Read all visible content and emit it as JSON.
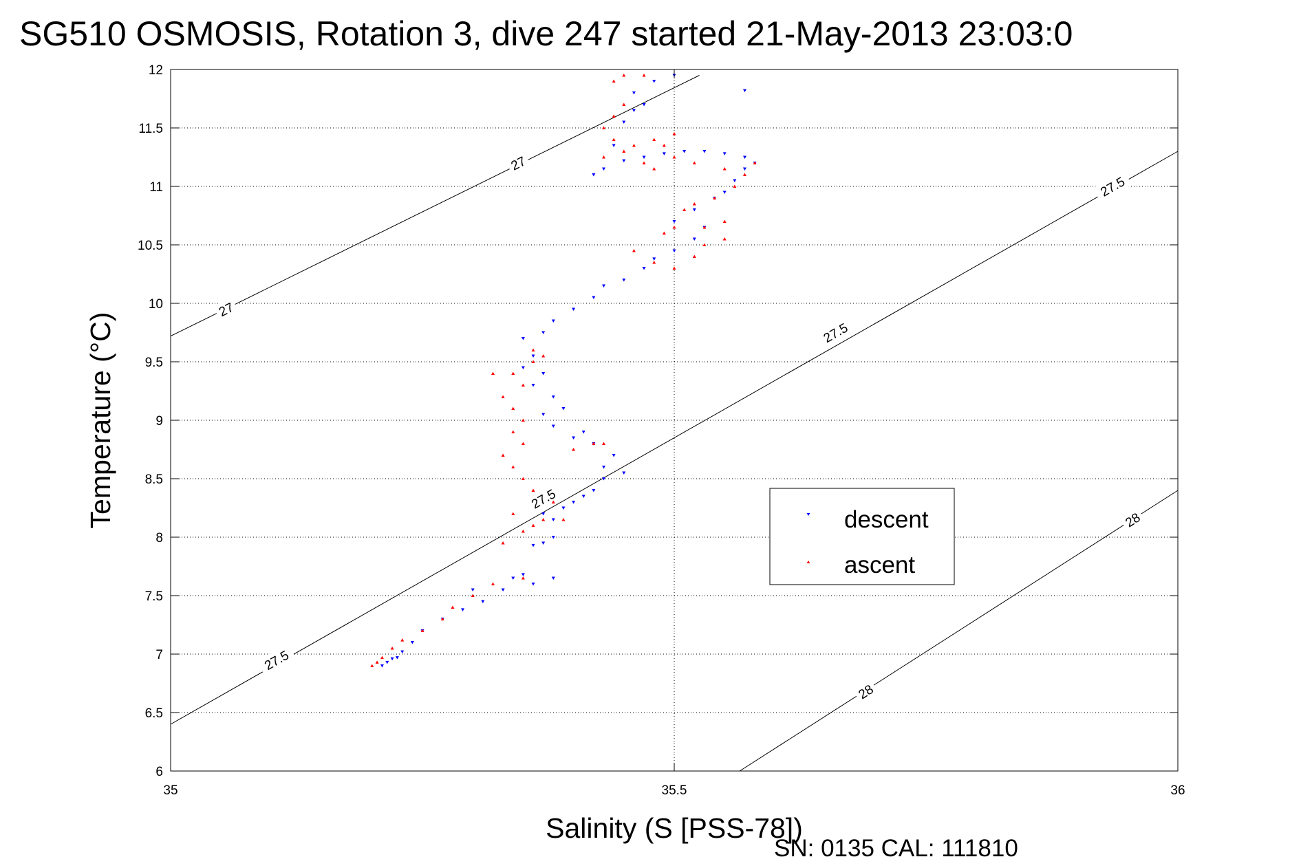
{
  "chart_data": {
    "type": "scatter",
    "title": "SG510 OSMOSIS, Rotation 3, dive 247 started 21-May-2013 23:03:0",
    "xlabel": "Salinity (S [PSS-78])",
    "ylabel": "Temperature (°C)",
    "footer": "SN: 0135  CAL: 111810",
    "xlim": [
      35,
      36
    ],
    "ylim": [
      6,
      12
    ],
    "xticks": [
      35,
      35.5,
      36
    ],
    "xtick_labels": [
      "35",
      "35.5",
      "36"
    ],
    "yticks": [
      6,
      6.5,
      7,
      7.5,
      8,
      8.5,
      9,
      9.5,
      10,
      10.5,
      11,
      11.5,
      12
    ],
    "ytick_labels": [
      "6",
      "6.5",
      "7",
      "7.5",
      "8",
      "8.5",
      "9",
      "9.5",
      "10",
      "10.5",
      "11",
      "11.5",
      "12"
    ],
    "grid": true,
    "legend": {
      "position": "right-middle",
      "entries": [
        "descent",
        "ascent"
      ]
    },
    "density_contours": [
      {
        "level": 27,
        "points": [
          [
            35,
            9.72
          ],
          [
            35.525,
            11.95
          ]
        ],
        "labels": [
          {
            "text": "27",
            "at": [
              35.055,
              9.95
            ]
          },
          {
            "text": "27",
            "at": [
              35.345,
              11.2
            ]
          }
        ]
      },
      {
        "level": 27.5,
        "points": [
          [
            35,
            6.4
          ],
          [
            36,
            11.3
          ]
        ],
        "labels": [
          {
            "text": "27.5",
            "at": [
              35.105,
              6.95
            ]
          },
          {
            "text": "27.5",
            "at": [
              35.37,
              8.33
            ]
          },
          {
            "text": "27.5",
            "at": [
              35.66,
              9.75
            ]
          },
          {
            "text": "27.5",
            "at": [
              35.935,
              11.0
            ]
          }
        ]
      },
      {
        "level": 28,
        "points": [
          [
            35.565,
            6
          ],
          [
            36,
            8.4
          ]
        ],
        "labels": [
          {
            "text": "28",
            "at": [
              35.69,
              6.68
            ]
          },
          {
            "text": "28",
            "at": [
              35.955,
              8.15
            ]
          }
        ]
      }
    ],
    "series": [
      {
        "name": "descent",
        "color": "#0000ff",
        "marker": "triangle-down",
        "points": [
          [
            35.21,
            6.9
          ],
          [
            35.215,
            6.93
          ],
          [
            35.22,
            6.96
          ],
          [
            35.225,
            6.97
          ],
          [
            35.23,
            7.02
          ],
          [
            35.24,
            7.1
          ],
          [
            35.25,
            7.2
          ],
          [
            35.27,
            7.3
          ],
          [
            35.29,
            7.38
          ],
          [
            35.31,
            7.45
          ],
          [
            35.3,
            7.55
          ],
          [
            35.33,
            7.55
          ],
          [
            35.36,
            7.6
          ],
          [
            35.38,
            7.65
          ],
          [
            35.34,
            7.65
          ],
          [
            35.35,
            7.68
          ],
          [
            35.36,
            7.93
          ],
          [
            35.37,
            7.95
          ],
          [
            35.38,
            8.0
          ],
          [
            35.38,
            8.15
          ],
          [
            35.37,
            8.2
          ],
          [
            35.39,
            8.25
          ],
          [
            35.4,
            8.3
          ],
          [
            35.41,
            8.35
          ],
          [
            35.42,
            8.4
          ],
          [
            35.43,
            8.5
          ],
          [
            35.45,
            8.55
          ],
          [
            35.43,
            8.6
          ],
          [
            35.44,
            8.7
          ],
          [
            35.42,
            8.8
          ],
          [
            35.4,
            8.85
          ],
          [
            35.41,
            8.9
          ],
          [
            35.38,
            8.95
          ],
          [
            35.37,
            9.05
          ],
          [
            35.39,
            9.1
          ],
          [
            35.38,
            9.2
          ],
          [
            35.36,
            9.3
          ],
          [
            35.37,
            9.4
          ],
          [
            35.35,
            9.45
          ],
          [
            35.36,
            9.55
          ],
          [
            35.35,
            9.7
          ],
          [
            35.37,
            9.75
          ],
          [
            35.38,
            9.85
          ],
          [
            35.4,
            9.95
          ],
          [
            35.42,
            10.05
          ],
          [
            35.43,
            10.15
          ],
          [
            35.45,
            10.2
          ],
          [
            35.47,
            10.3
          ],
          [
            35.48,
            10.38
          ],
          [
            35.5,
            10.45
          ],
          [
            35.52,
            10.55
          ],
          [
            35.53,
            10.65
          ],
          [
            35.5,
            10.7
          ],
          [
            35.52,
            10.8
          ],
          [
            35.54,
            10.9
          ],
          [
            35.55,
            10.95
          ],
          [
            35.56,
            11.05
          ],
          [
            35.57,
            11.15
          ],
          [
            35.58,
            11.2
          ],
          [
            35.57,
            11.25
          ],
          [
            35.55,
            11.28
          ],
          [
            35.53,
            11.3
          ],
          [
            35.51,
            11.3
          ],
          [
            35.49,
            11.28
          ],
          [
            35.47,
            11.25
          ],
          [
            35.45,
            11.22
          ],
          [
            35.43,
            11.15
          ],
          [
            35.42,
            11.1
          ],
          [
            35.44,
            11.35
          ],
          [
            35.45,
            11.55
          ],
          [
            35.46,
            11.65
          ],
          [
            35.47,
            11.7
          ],
          [
            35.46,
            11.8
          ],
          [
            35.48,
            11.9
          ],
          [
            35.5,
            11.95
          ],
          [
            35.57,
            11.82
          ]
        ]
      },
      {
        "name": "ascent",
        "color": "#ff0000",
        "marker": "triangle-up",
        "points": [
          [
            35.2,
            6.9
          ],
          [
            35.205,
            6.93
          ],
          [
            35.21,
            6.97
          ],
          [
            35.22,
            7.05
          ],
          [
            35.23,
            7.12
          ],
          [
            35.25,
            7.2
          ],
          [
            35.27,
            7.3
          ],
          [
            35.28,
            7.4
          ],
          [
            35.3,
            7.5
          ],
          [
            35.32,
            7.6
          ],
          [
            35.35,
            7.65
          ],
          [
            35.33,
            7.95
          ],
          [
            35.35,
            8.05
          ],
          [
            35.36,
            8.1
          ],
          [
            35.34,
            8.2
          ],
          [
            35.37,
            8.15
          ],
          [
            35.39,
            8.15
          ],
          [
            35.38,
            8.3
          ],
          [
            35.36,
            8.4
          ],
          [
            35.35,
            8.5
          ],
          [
            35.34,
            8.6
          ],
          [
            35.33,
            8.7
          ],
          [
            35.35,
            8.8
          ],
          [
            35.34,
            8.9
          ],
          [
            35.35,
            9.0
          ],
          [
            35.34,
            9.1
          ],
          [
            35.33,
            9.2
          ],
          [
            35.35,
            9.3
          ],
          [
            35.34,
            9.4
          ],
          [
            35.36,
            9.5
          ],
          [
            35.37,
            9.55
          ],
          [
            35.36,
            9.6
          ],
          [
            35.32,
            9.4
          ],
          [
            35.42,
            8.8
          ],
          [
            35.4,
            8.75
          ],
          [
            35.43,
            8.8
          ],
          [
            35.46,
            10.45
          ],
          [
            35.48,
            10.35
          ],
          [
            35.5,
            10.3
          ],
          [
            35.52,
            10.4
          ],
          [
            35.53,
            10.5
          ],
          [
            35.55,
            10.55
          ],
          [
            35.53,
            10.65
          ],
          [
            35.55,
            10.7
          ],
          [
            35.5,
            10.65
          ],
          [
            35.49,
            10.6
          ],
          [
            35.51,
            10.8
          ],
          [
            35.52,
            10.85
          ],
          [
            35.54,
            10.9
          ],
          [
            35.56,
            11.0
          ],
          [
            35.57,
            11.1
          ],
          [
            35.58,
            11.2
          ],
          [
            35.55,
            11.15
          ],
          [
            35.52,
            11.2
          ],
          [
            35.5,
            11.25
          ],
          [
            35.48,
            11.15
          ],
          [
            35.47,
            11.2
          ],
          [
            35.49,
            11.35
          ],
          [
            35.5,
            11.45
          ],
          [
            35.48,
            11.4
          ],
          [
            35.46,
            11.35
          ],
          [
            35.45,
            11.3
          ],
          [
            35.44,
            11.4
          ],
          [
            35.43,
            11.5
          ],
          [
            35.44,
            11.6
          ],
          [
            35.45,
            11.7
          ],
          [
            35.44,
            11.9
          ],
          [
            35.45,
            11.95
          ],
          [
            35.47,
            11.95
          ],
          [
            35.43,
            11.25
          ]
        ]
      }
    ]
  }
}
